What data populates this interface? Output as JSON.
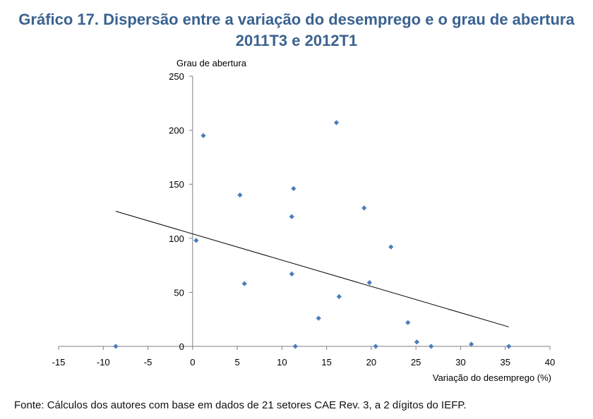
{
  "title_line1": "Gráfico 17. Dispersão entre a variação do desemprego e o grau de abertura",
  "title_line2": "2011T3 e 2012T1",
  "source": "Fonte: Cálculos dos autores com base em dados de 21 setores CAE Rev. 3, a 2 dígitos do IEFP.",
  "colors": {
    "points": "#4a7ebb",
    "title": "#3a6290",
    "trendline": "#000000",
    "axis": "#7f7f7f"
  },
  "chart_data": {
    "type": "scatter",
    "title": "Gráfico 17. Dispersão entre a variação do desemprego e o grau de abertura 2011T3 e 2012T1",
    "xlabel": "Variação do desemprego (%)",
    "ylabel": "Grau de abertura",
    "xlim": [
      -15,
      40
    ],
    "ylim": [
      0,
      250
    ],
    "xticks": [
      -15,
      -10,
      -5,
      0,
      5,
      10,
      15,
      20,
      25,
      30,
      35,
      40
    ],
    "yticks": [
      0,
      50,
      100,
      150,
      200,
      250
    ],
    "grid": false,
    "legend": "none",
    "points": [
      {
        "x": -8.6,
        "y": 0
      },
      {
        "x": 0.4,
        "y": 98
      },
      {
        "x": 1.2,
        "y": 195
      },
      {
        "x": 5.3,
        "y": 140
      },
      {
        "x": 5.8,
        "y": 58
      },
      {
        "x": 11.1,
        "y": 120
      },
      {
        "x": 11.1,
        "y": 67
      },
      {
        "x": 11.3,
        "y": 146
      },
      {
        "x": 11.5,
        "y": 0
      },
      {
        "x": 14.1,
        "y": 26
      },
      {
        "x": 16.1,
        "y": 207
      },
      {
        "x": 16.4,
        "y": 46
      },
      {
        "x": 19.2,
        "y": 128
      },
      {
        "x": 19.8,
        "y": 59
      },
      {
        "x": 20.5,
        "y": 0
      },
      {
        "x": 22.2,
        "y": 92
      },
      {
        "x": 24.1,
        "y": 22
      },
      {
        "x": 25.1,
        "y": 4
      },
      {
        "x": 26.7,
        "y": 0
      },
      {
        "x": 31.2,
        "y": 2
      },
      {
        "x": 35.4,
        "y": 0
      }
    ],
    "trendline": {
      "x1": -8.6,
      "y1": 125,
      "x2": 35.4,
      "y2": 18
    }
  }
}
